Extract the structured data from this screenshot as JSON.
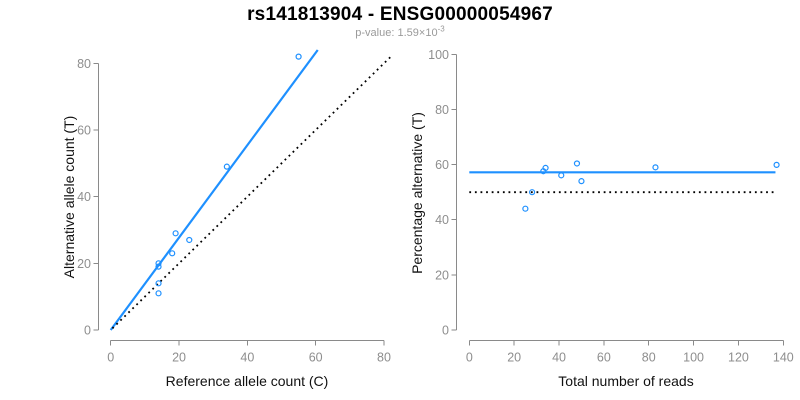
{
  "header": {
    "title": "rs141813904 - ENSG00000054967",
    "p_label": "p-value: ",
    "p_mantissa": "1.59",
    "p_times": "×10",
    "p_exponent": "-3"
  },
  "colors": {
    "accent_blue": "#1E90FF",
    "line_black": "#000000",
    "axis_gray": "#8a8a8a",
    "tick_label_gray": "#8e8e8e",
    "axis_title_color": "#111111",
    "title_color": "#000000",
    "subtitle_gray": "#9a9a9a",
    "background": "#ffffff"
  },
  "chart_data": [
    {
      "type": "scatter",
      "xlabel": "Reference allele count (C)",
      "ylabel": "Alternative allele count (T)",
      "xlim": [
        0,
        80
      ],
      "ylim": [
        0,
        80
      ],
      "xticks": [
        0,
        20,
        40,
        60,
        80
      ],
      "yticks": [
        0,
        20,
        40,
        60,
        80
      ],
      "grid": false,
      "legend": null,
      "points": [
        [
          14,
          11
        ],
        [
          14,
          14
        ],
        [
          14,
          19
        ],
        [
          14,
          20
        ],
        [
          18,
          23
        ],
        [
          19,
          29
        ],
        [
          23,
          27
        ],
        [
          34,
          49
        ],
        [
          55,
          82
        ]
      ],
      "lines": [
        {
          "name": "fit-line",
          "kind": "abline",
          "slope": 1.386,
          "intercept": 0,
          "x_range": [
            0,
            60.6
          ],
          "style": "solid",
          "color": "blue"
        },
        {
          "name": "identity-line",
          "kind": "abline",
          "slope": 1,
          "intercept": 0,
          "x_range": [
            0.5,
            82.5
          ],
          "style": "dotted",
          "color": "black"
        }
      ]
    },
    {
      "type": "scatter",
      "xlabel": "Total number of reads",
      "ylabel": "Percentage alternative (T)",
      "xlim": [
        0,
        140
      ],
      "ylim": [
        0,
        100
      ],
      "xticks": [
        0,
        20,
        40,
        60,
        80,
        100,
        120,
        140
      ],
      "yticks": [
        0,
        20,
        40,
        60,
        80,
        100
      ],
      "grid": false,
      "legend": null,
      "points": [
        [
          25,
          44.0
        ],
        [
          28,
          50.0
        ],
        [
          33,
          57.6
        ],
        [
          34,
          58.8
        ],
        [
          41,
          56.1
        ],
        [
          48,
          60.4
        ],
        [
          50,
          54.0
        ],
        [
          83,
          59.0
        ],
        [
          137,
          59.9
        ]
      ],
      "lines": [
        {
          "name": "mean-percentage-line",
          "kind": "hline",
          "y": 57.2,
          "x_range": [
            0,
            136.5
          ],
          "style": "solid",
          "color": "blue"
        },
        {
          "name": "null-50pct-line",
          "kind": "hline",
          "y": 50,
          "x_range": [
            0,
            136.5
          ],
          "style": "dotted",
          "color": "black"
        }
      ]
    }
  ]
}
